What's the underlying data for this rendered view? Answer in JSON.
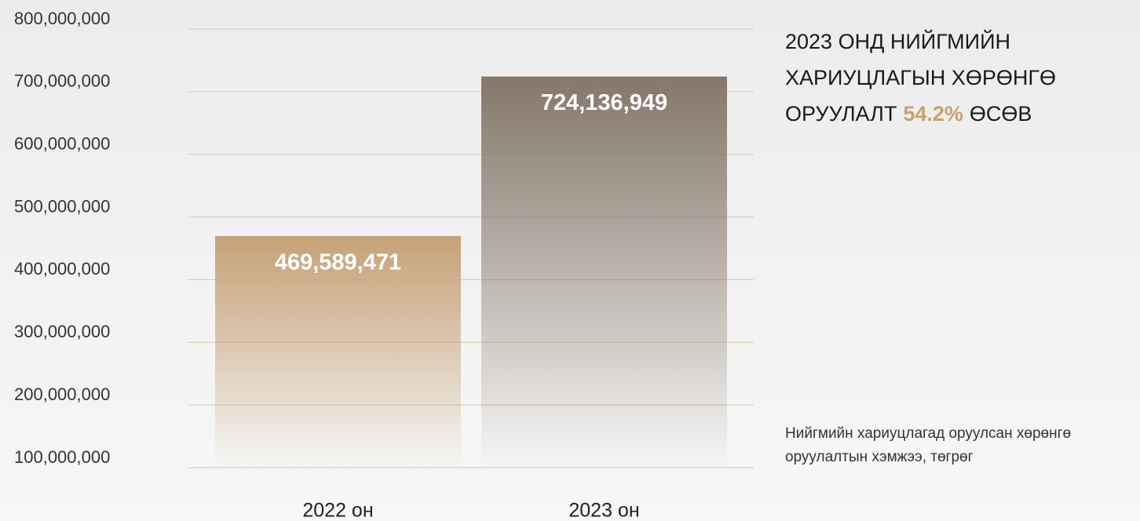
{
  "chart_data": {
    "type": "bar",
    "title": {
      "before": "2023 ОНД НИЙГМИЙН ХАРИУЦЛАГЫН ХӨРӨНГӨ ОРУУЛАЛТ",
      "highlight": "54.2%",
      "after": "ӨСӨВ"
    },
    "highlight_color": "#c8a070",
    "note": "Нийгмийн хариуцлагад оруулсан хөрөнгө оруулалтын хэмжээ, төгрөг",
    "categories": [
      "2022 он",
      "2023 он"
    ],
    "values": [
      469589471,
      724136949
    ],
    "value_labels": [
      "469,589,471",
      "724,136,949"
    ],
    "colors": [
      "#c6a176",
      "#85786a"
    ],
    "ylim": [
      100000000,
      800000000
    ],
    "yticks": [
      {
        "value": 100000000,
        "label": "100,000,000"
      },
      {
        "value": 200000000,
        "label": "200,000,000"
      },
      {
        "value": 300000000,
        "label": "300,000,000"
      },
      {
        "value": 400000000,
        "label": "400,000,000"
      },
      {
        "value": 500000000,
        "label": "500,000,000"
      },
      {
        "value": 600000000,
        "label": "600,000,000"
      },
      {
        "value": 700000000,
        "label": "700,000,000"
      },
      {
        "value": 800000000,
        "label": "800,000,000"
      }
    ],
    "grid": true
  }
}
